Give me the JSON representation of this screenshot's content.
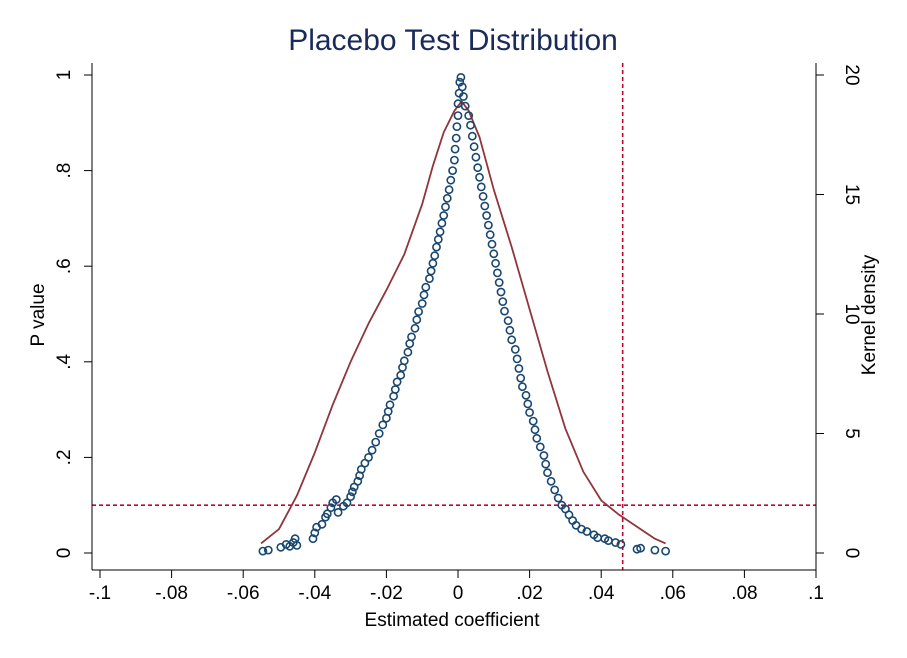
{
  "chart_data": {
    "type": "scatter",
    "title": "Placebo Test Distribution",
    "xlabel": "Estimated coefficient",
    "ylabel_left": "P value",
    "ylabel_right": "Kernel density",
    "xlim": [
      -0.1,
      0.1
    ],
    "ylim_left": [
      0,
      1
    ],
    "ylim_right": [
      0,
      20
    ],
    "x_ticks": [
      {
        "value": -0.1,
        "label": "-.1"
      },
      {
        "value": -0.08,
        "label": "-.08"
      },
      {
        "value": -0.06,
        "label": "-.06"
      },
      {
        "value": -0.04,
        "label": "-.04"
      },
      {
        "value": -0.02,
        "label": "-.02"
      },
      {
        "value": 0,
        "label": "0"
      },
      {
        "value": 0.02,
        "label": ".02"
      },
      {
        "value": 0.04,
        "label": ".04"
      },
      {
        "value": 0.06,
        "label": ".06"
      },
      {
        "value": 0.08,
        "label": ".08"
      },
      {
        "value": 0.1,
        "label": ".1"
      }
    ],
    "y_left_ticks": [
      {
        "value": 0,
        "label": "0"
      },
      {
        "value": 0.2,
        "label": ".2"
      },
      {
        "value": 0.4,
        "label": ".4"
      },
      {
        "value": 0.6,
        "label": ".6"
      },
      {
        "value": 0.8,
        "label": ".8"
      },
      {
        "value": 1,
        "label": "1"
      }
    ],
    "y_right_ticks": [
      {
        "value": 0,
        "label": "0"
      },
      {
        "value": 5,
        "label": "5"
      },
      {
        "value": 10,
        "label": "10"
      },
      {
        "value": 15,
        "label": "15"
      },
      {
        "value": 20,
        "label": "20"
      }
    ],
    "reference_lines": {
      "vertical_x": 0.046,
      "horizontal_p": 0.1
    },
    "colors": {
      "scatter": "#1a476f",
      "density": "#90353b",
      "reference": "#c10534",
      "title": "#1a2a5a"
    },
    "series": [
      {
        "type": "scatter",
        "axis": "left",
        "points": [
          [
            -0.0545,
            0.004
          ],
          [
            -0.053,
            0.006
          ],
          [
            -0.0495,
            0.012
          ],
          [
            -0.048,
            0.018
          ],
          [
            -0.047,
            0.014
          ],
          [
            -0.046,
            0.022
          ],
          [
            -0.0455,
            0.03
          ],
          [
            -0.045,
            0.016
          ],
          [
            -0.0405,
            0.03
          ],
          [
            -0.04,
            0.042
          ],
          [
            -0.0395,
            0.054
          ],
          [
            -0.038,
            0.06
          ],
          [
            -0.037,
            0.075
          ],
          [
            -0.0365,
            0.082
          ],
          [
            -0.0355,
            0.095
          ],
          [
            -0.035,
            0.105
          ],
          [
            -0.034,
            0.112
          ],
          [
            -0.0335,
            0.085
          ],
          [
            -0.032,
            0.098
          ],
          [
            -0.031,
            0.105
          ],
          [
            -0.03,
            0.118
          ],
          [
            -0.0295,
            0.128
          ],
          [
            -0.029,
            0.138
          ],
          [
            -0.028,
            0.15
          ],
          [
            -0.0275,
            0.162
          ],
          [
            -0.027,
            0.175
          ],
          [
            -0.026,
            0.188
          ],
          [
            -0.025,
            0.2
          ],
          [
            -0.024,
            0.215
          ],
          [
            -0.023,
            0.232
          ],
          [
            -0.022,
            0.25
          ],
          [
            -0.021,
            0.268
          ],
          [
            -0.02,
            0.282
          ],
          [
            -0.0195,
            0.296
          ],
          [
            -0.019,
            0.31
          ],
          [
            -0.018,
            0.328
          ],
          [
            -0.0175,
            0.342
          ],
          [
            -0.017,
            0.358
          ],
          [
            -0.016,
            0.372
          ],
          [
            -0.0155,
            0.388
          ],
          [
            -0.015,
            0.402
          ],
          [
            -0.014,
            0.42
          ],
          [
            -0.0135,
            0.438
          ],
          [
            -0.013,
            0.452
          ],
          [
            -0.012,
            0.47
          ],
          [
            -0.0115,
            0.488
          ],
          [
            -0.011,
            0.505
          ],
          [
            -0.01,
            0.522
          ],
          [
            -0.0095,
            0.54
          ],
          [
            -0.009,
            0.556
          ],
          [
            -0.008,
            0.574
          ],
          [
            -0.0075,
            0.59
          ],
          [
            -0.007,
            0.606
          ],
          [
            -0.0065,
            0.622
          ],
          [
            -0.006,
            0.64
          ],
          [
            -0.0055,
            0.656
          ],
          [
            -0.005,
            0.672
          ],
          [
            -0.0045,
            0.69
          ],
          [
            -0.004,
            0.706
          ],
          [
            -0.0035,
            0.724
          ],
          [
            -0.003,
            0.742
          ],
          [
            -0.0025,
            0.76
          ],
          [
            -0.002,
            0.78
          ],
          [
            -0.0015,
            0.8
          ],
          [
            -0.001,
            0.822
          ],
          [
            -0.0008,
            0.845
          ],
          [
            -0.0005,
            0.868
          ],
          [
            -0.0003,
            0.892
          ],
          [
            0.0,
            0.915
          ],
          [
            0.0,
            0.94
          ],
          [
            0.0003,
            0.962
          ],
          [
            0.0005,
            0.985
          ],
          [
            0.0008,
            0.995
          ],
          [
            0.0012,
            0.975
          ],
          [
            0.0015,
            0.955
          ],
          [
            0.002,
            0.935
          ],
          [
            0.003,
            0.915
          ],
          [
            0.0035,
            0.895
          ],
          [
            0.004,
            0.872
          ],
          [
            0.0045,
            0.85
          ],
          [
            0.005,
            0.828
          ],
          [
            0.0055,
            0.806
          ],
          [
            0.006,
            0.786
          ],
          [
            0.0065,
            0.766
          ],
          [
            0.007,
            0.746
          ],
          [
            0.0075,
            0.726
          ],
          [
            0.008,
            0.706
          ],
          [
            0.0085,
            0.686
          ],
          [
            0.009,
            0.666
          ],
          [
            0.0095,
            0.646
          ],
          [
            0.01,
            0.626
          ],
          [
            0.0105,
            0.606
          ],
          [
            0.011,
            0.586
          ],
          [
            0.0115,
            0.566
          ],
          [
            0.012,
            0.546
          ],
          [
            0.0125,
            0.526
          ],
          [
            0.013,
            0.506
          ],
          [
            0.014,
            0.486
          ],
          [
            0.0145,
            0.466
          ],
          [
            0.015,
            0.446
          ],
          [
            0.016,
            0.426
          ],
          [
            0.0165,
            0.406
          ],
          [
            0.017,
            0.386
          ],
          [
            0.0175,
            0.366
          ],
          [
            0.018,
            0.348
          ],
          [
            0.019,
            0.33
          ],
          [
            0.0195,
            0.312
          ],
          [
            0.02,
            0.294
          ],
          [
            0.021,
            0.276
          ],
          [
            0.0215,
            0.258
          ],
          [
            0.022,
            0.24
          ],
          [
            0.023,
            0.222
          ],
          [
            0.024,
            0.204
          ],
          [
            0.0245,
            0.186
          ],
          [
            0.025,
            0.168
          ],
          [
            0.026,
            0.15
          ],
          [
            0.027,
            0.132
          ],
          [
            0.028,
            0.115
          ],
          [
            0.029,
            0.1
          ],
          [
            0.03,
            0.092
          ],
          [
            0.031,
            0.08
          ],
          [
            0.032,
            0.068
          ],
          [
            0.033,
            0.058
          ],
          [
            0.0345,
            0.05
          ],
          [
            0.036,
            0.045
          ],
          [
            0.038,
            0.038
          ],
          [
            0.039,
            0.032
          ],
          [
            0.041,
            0.03
          ],
          [
            0.042,
            0.026
          ],
          [
            0.044,
            0.022
          ],
          [
            0.0455,
            0.018
          ],
          [
            0.05,
            0.008
          ],
          [
            0.051,
            0.01
          ],
          [
            0.055,
            0.006
          ],
          [
            0.058,
            0.004
          ]
        ]
      },
      {
        "type": "line",
        "axis": "right",
        "name": "",
        "points": [
          [
            -0.055,
            0.4
          ],
          [
            -0.05,
            1.0
          ],
          [
            -0.045,
            2.4
          ],
          [
            -0.04,
            4.2
          ],
          [
            -0.035,
            6.2
          ],
          [
            -0.03,
            8.0
          ],
          [
            -0.025,
            9.6
          ],
          [
            -0.02,
            11.0
          ],
          [
            -0.015,
            12.5
          ],
          [
            -0.01,
            14.6
          ],
          [
            -0.007,
            16.2
          ],
          [
            -0.004,
            17.6
          ],
          [
            -0.001,
            18.5
          ],
          [
            0.001,
            18.9
          ],
          [
            0.003,
            18.5
          ],
          [
            0.006,
            17.4
          ],
          [
            0.01,
            15.2
          ],
          [
            0.015,
            12.8
          ],
          [
            0.02,
            10.2
          ],
          [
            0.025,
            7.6
          ],
          [
            0.03,
            5.2
          ],
          [
            0.035,
            3.4
          ],
          [
            0.04,
            2.2
          ],
          [
            0.045,
            1.6
          ],
          [
            0.05,
            1.1
          ],
          [
            0.055,
            0.6
          ],
          [
            0.058,
            0.4
          ]
        ]
      }
    ]
  }
}
